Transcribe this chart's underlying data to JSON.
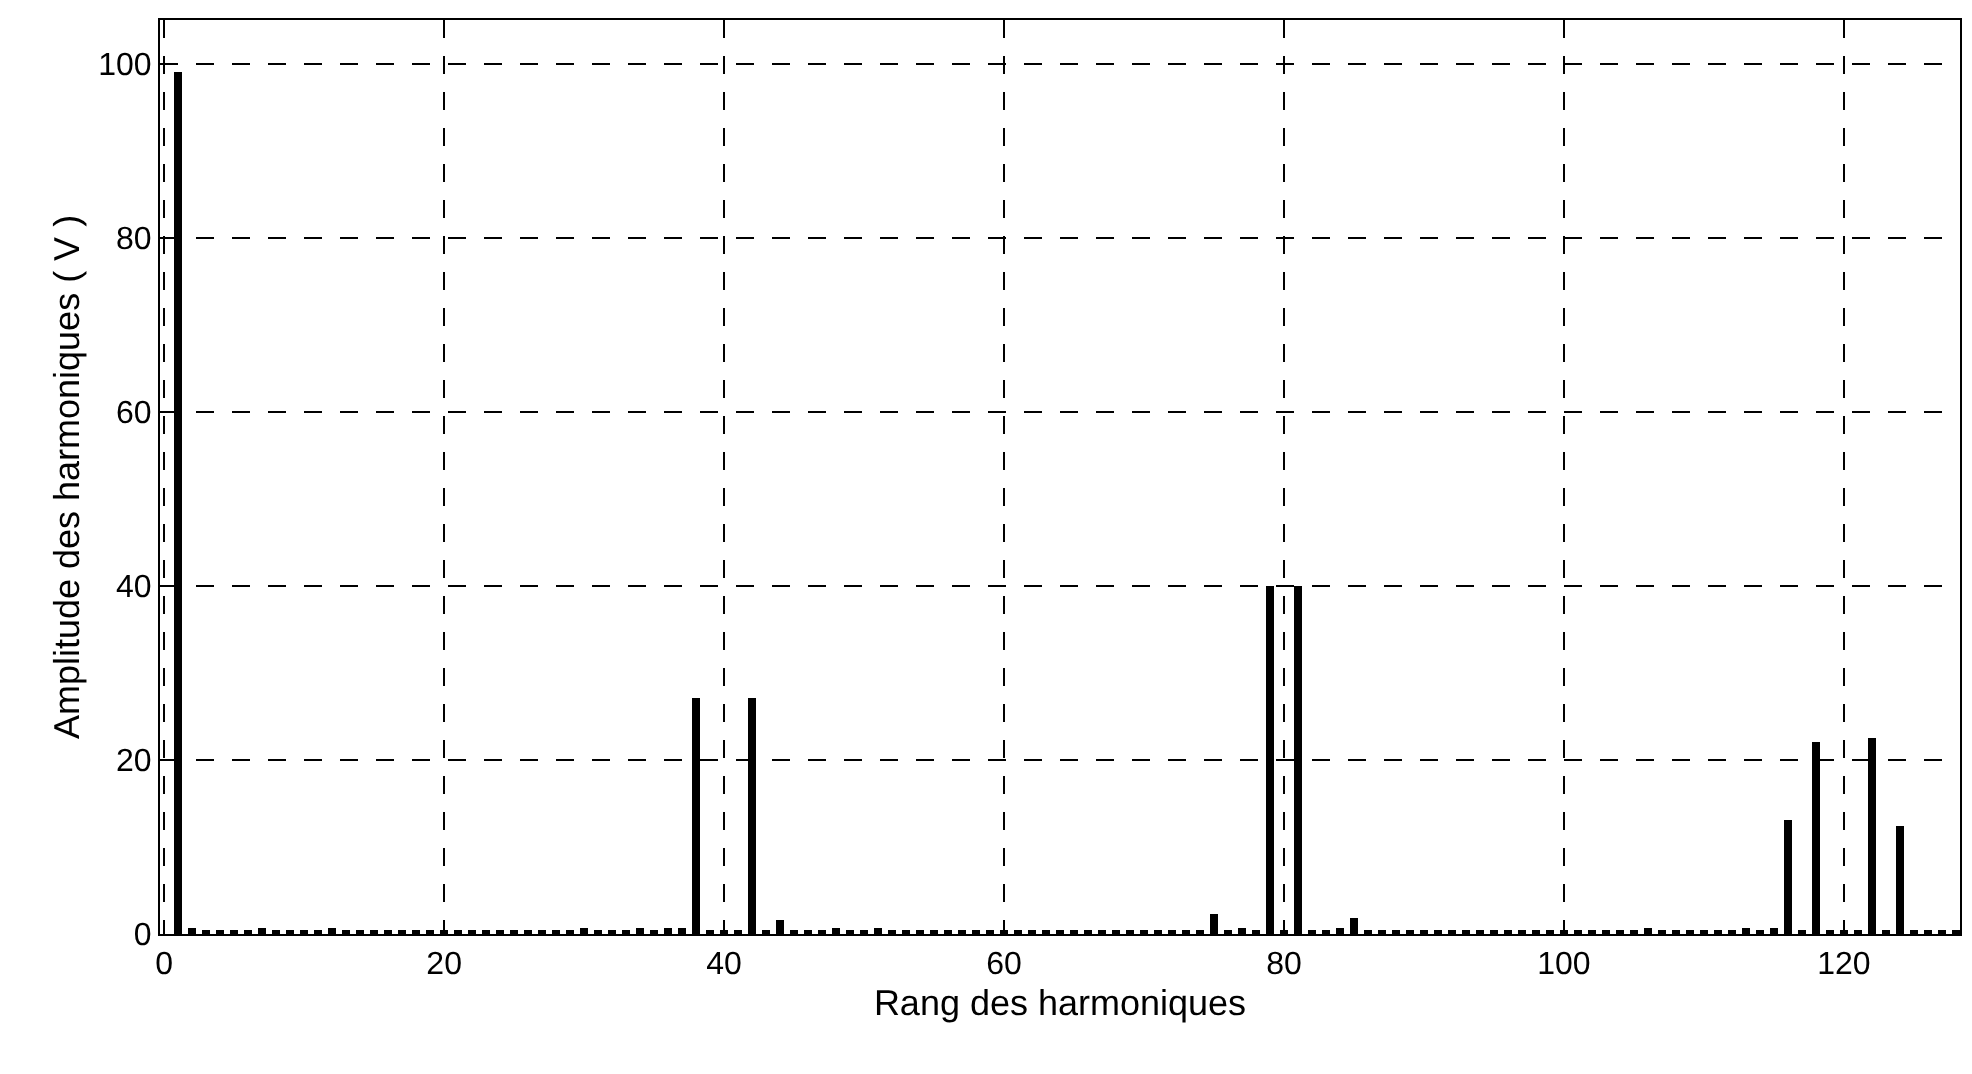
{
  "chart_data": {
    "type": "bar",
    "xlabel": "Rang des harmoniques",
    "ylabel": "Amplitude des harmoniques ( V )",
    "x": [
      1,
      2,
      3,
      4,
      5,
      6,
      7,
      8,
      9,
      10,
      11,
      12,
      13,
      14,
      15,
      16,
      17,
      18,
      19,
      20,
      21,
      22,
      23,
      24,
      25,
      26,
      27,
      28,
      29,
      30,
      31,
      32,
      33,
      34,
      35,
      36,
      37,
      38,
      39,
      40,
      41,
      42,
      43,
      44,
      45,
      46,
      47,
      48,
      49,
      50,
      51,
      52,
      53,
      54,
      55,
      56,
      57,
      58,
      59,
      60,
      61,
      62,
      63,
      64,
      65,
      66,
      67,
      68,
      69,
      70,
      71,
      72,
      73,
      74,
      75,
      76,
      77,
      78,
      79,
      80,
      81,
      82,
      83,
      84,
      85,
      86,
      87,
      88,
      89,
      90,
      91,
      92,
      93,
      94,
      95,
      96,
      97,
      98,
      99,
      100,
      101,
      102,
      103,
      104,
      105,
      106,
      107,
      108,
      109,
      110,
      111,
      112,
      113,
      114,
      115,
      116,
      117,
      118,
      119,
      120,
      121,
      122,
      123,
      124,
      125,
      126,
      127,
      128
    ],
    "values": [
      99,
      0.8,
      0.3,
      0.3,
      0.3,
      0.3,
      0.6,
      0.3,
      0.3,
      0.3,
      0.3,
      0.6,
      0.3,
      0.3,
      0.3,
      0.3,
      0.3,
      0.3,
      0.3,
      0.3,
      0.3,
      0.3,
      0.3,
      0.3,
      0.3,
      0.3,
      0.3,
      0.3,
      0.3,
      0.6,
      0.3,
      0.3,
      0.3,
      0.6,
      0.3,
      0.6,
      0.8,
      27,
      0.3,
      0.3,
      0.3,
      27,
      0.3,
      1.6,
      0.3,
      0.3,
      0.3,
      0.6,
      0.3,
      0.3,
      0.6,
      0.3,
      0.3,
      0.3,
      0.3,
      0.3,
      0.3,
      0.3,
      0.3,
      0.3,
      0.3,
      0.3,
      0.3,
      0.3,
      0.3,
      0.3,
      0.3,
      0.3,
      0.3,
      0.3,
      0.3,
      0.3,
      0.3,
      0.3,
      2.2,
      0.3,
      0.8,
      0.3,
      40,
      0.3,
      40,
      0.3,
      0.3,
      0.8,
      1.8,
      0.3,
      0.3,
      0.3,
      0.3,
      0.3,
      0.3,
      0.3,
      0.5,
      0.3,
      0.3,
      0.3,
      0.3,
      0.3,
      0.3,
      0.3,
      0.3,
      0.3,
      0.3,
      0.3,
      0.3,
      0.6,
      0.3,
      0.3,
      0.3,
      0.3,
      0.3,
      0.3,
      0.6,
      0.3,
      0.8,
      13,
      0.3,
      22,
      0.3,
      0.3,
      0.3,
      22.5,
      0.3,
      12.5,
      0.3,
      0.3,
      0.3,
      0.3
    ],
    "color": "#000000",
    "xlim": [
      -0.3,
      128.3
    ],
    "xticks": [
      0,
      20,
      40,
      60,
      80,
      100,
      120
    ],
    "ylim": [
      0,
      105
    ],
    "yticks": [
      0,
      20,
      40,
      60,
      80,
      100
    ],
    "grid": true,
    "line_style": "dashed"
  }
}
